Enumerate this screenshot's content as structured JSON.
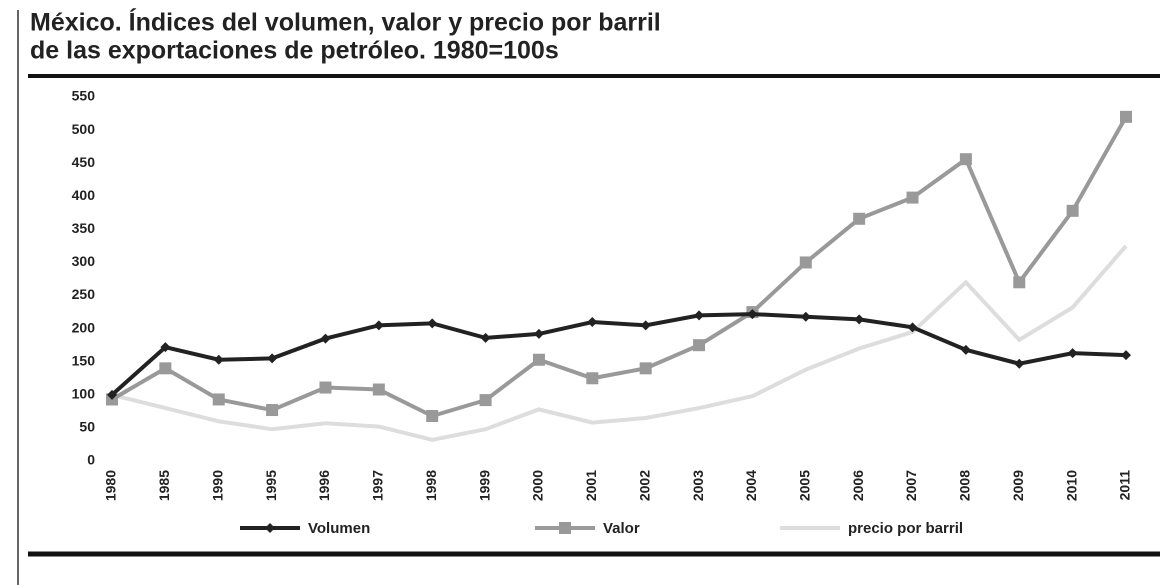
{
  "chart_data": {
    "type": "line",
    "title": [
      "México. Índices del volumen, valor y precio por barril",
      "de las exportaciones de petróleo. 1980=100s"
    ],
    "categories": [
      "1980",
      "1985",
      "1990",
      "1995",
      "1996",
      "1997",
      "1998",
      "1999",
      "2000",
      "2001",
      "2002",
      "2003",
      "2004",
      "2005",
      "2006",
      "2007",
      "2008",
      "2009",
      "2010",
      "2011"
    ],
    "series": [
      {
        "name": "Volumen",
        "color": "#222222",
        "marker": "diamond",
        "values": [
          100,
          172,
          153,
          155,
          185,
          205,
          208,
          186,
          192,
          210,
          205,
          220,
          222,
          218,
          214,
          202,
          168,
          147,
          163,
          160
        ]
      },
      {
        "name": "Valor",
        "color": "#999999",
        "marker": "square",
        "values": [
          93,
          140,
          93,
          77,
          111,
          108,
          68,
          92,
          153,
          125,
          140,
          175,
          225,
          300,
          366,
          398,
          456,
          270,
          378,
          520
        ]
      },
      {
        "name": "precio por barril",
        "color": "#dddddd",
        "marker": "none",
        "values": [
          100,
          80,
          60,
          48,
          57,
          52,
          32,
          48,
          78,
          58,
          65,
          80,
          98,
          138,
          170,
          195,
          270,
          183,
          232,
          325
        ]
      }
    ],
    "ylim": [
      0,
      550
    ],
    "yticks": [
      0,
      50,
      100,
      150,
      200,
      250,
      300,
      350,
      400,
      450,
      500,
      550
    ],
    "grid": false,
    "legend": "bottom"
  }
}
